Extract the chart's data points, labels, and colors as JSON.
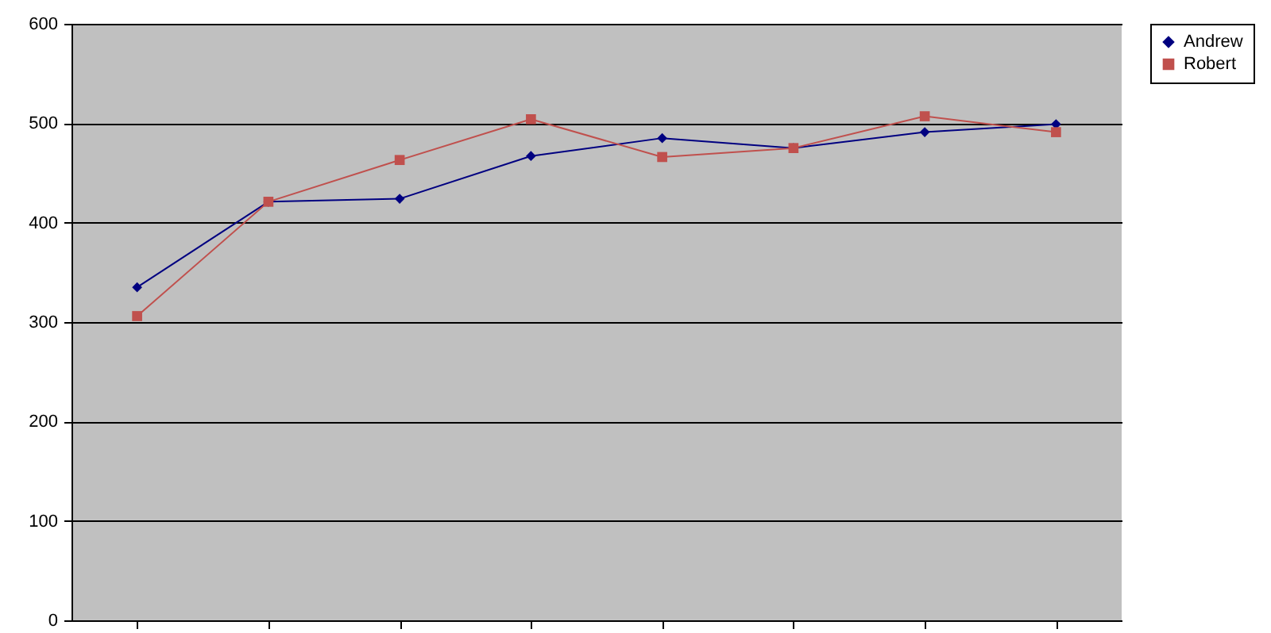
{
  "chart_data": {
    "type": "line",
    "categories": [
      null,
      null,
      null,
      null,
      null,
      null,
      null,
      null
    ],
    "series": [
      {
        "name": "Andrew",
        "color": "#000080",
        "marker": "diamond",
        "values": [
          335,
          421,
          424,
          467,
          485,
          475,
          491,
          499
        ]
      },
      {
        "name": "Robert",
        "color": "#c0504d",
        "marker": "square",
        "values": [
          306,
          421,
          463,
          504,
          466,
          475,
          507,
          491
        ]
      }
    ],
    "ylim": [
      0,
      600
    ],
    "yticks": [
      0,
      100,
      200,
      300,
      400,
      500,
      600
    ],
    "grid": "y",
    "legend": "right",
    "line_style": "solid"
  }
}
